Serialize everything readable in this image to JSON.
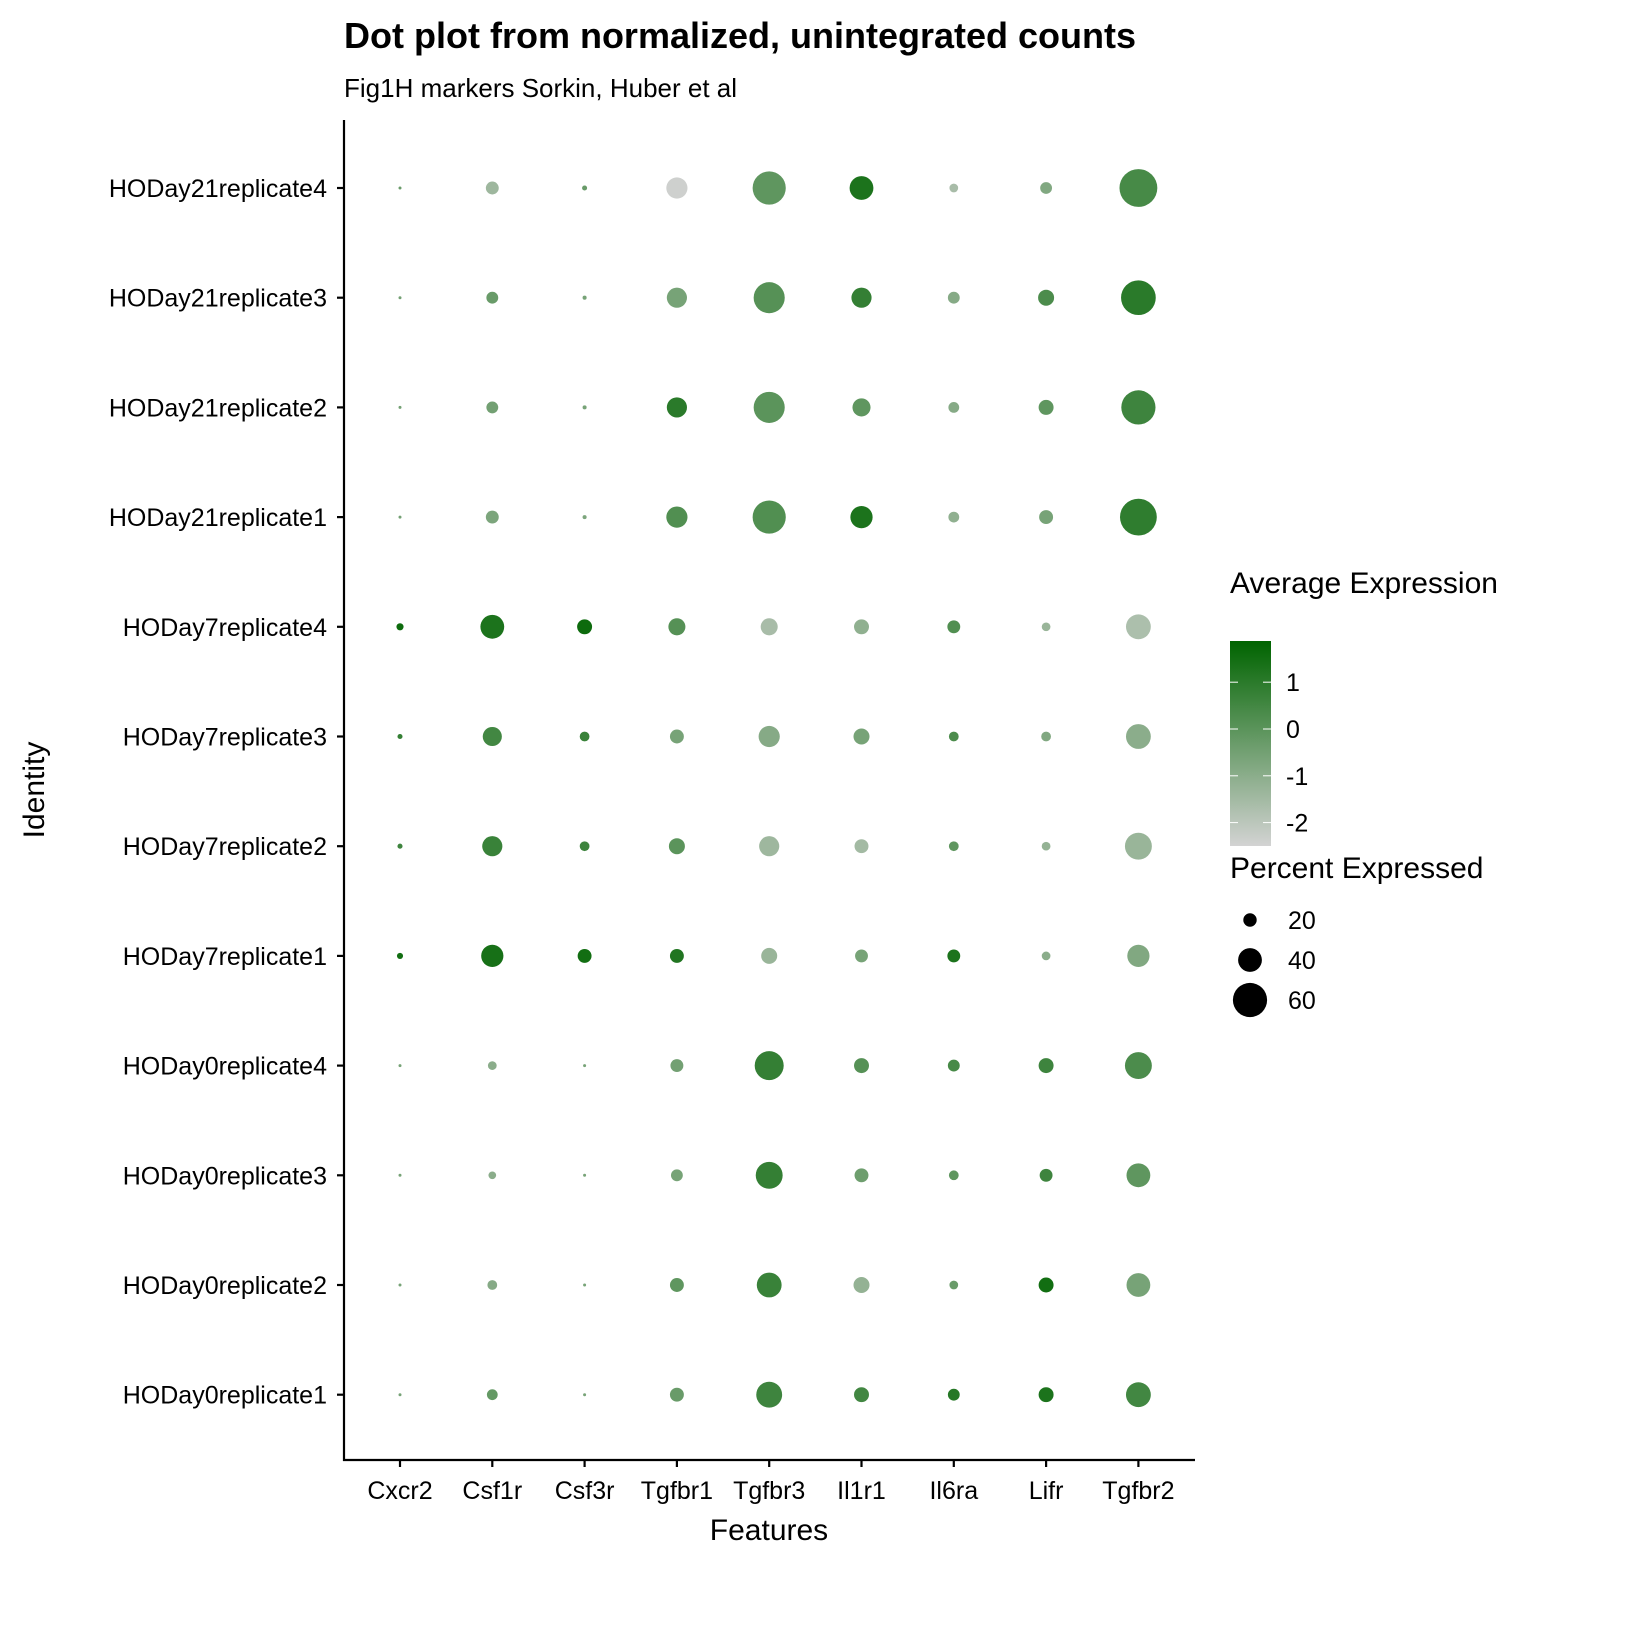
{
  "chart_data": {
    "type": "scatter",
    "subtype": "dot-plot",
    "title": "Dot plot from normalized, unintegrated counts",
    "subtitle": "Fig1H markers Sorkin, Huber et al",
    "xlabel": "Features",
    "ylabel": "Identity",
    "features": [
      "Cxcr2",
      "Csf1r",
      "Csf3r",
      "Tgfbr1",
      "Tgfbr3",
      "Il1r1",
      "Il6ra",
      "Lifr",
      "Tgfbr2"
    ],
    "identities": [
      "HODay21replicate4",
      "HODay21replicate3",
      "HODay21replicate2",
      "HODay21replicate1",
      "HODay7replicate4",
      "HODay7replicate3",
      "HODay7replicate2",
      "HODay7replicate1",
      "HODay0replicate4",
      "HODay0replicate3",
      "HODay0replicate2",
      "HODay0replicate1"
    ],
    "percent_expressed": [
      [
        0,
        19,
        4,
        35,
        58,
        40,
        11,
        17,
        67
      ],
      [
        0,
        17,
        2,
        33,
        54,
        33,
        17,
        25,
        61
      ],
      [
        0,
        17,
        2,
        33,
        54,
        29,
        15,
        23,
        60
      ],
      [
        0,
        19,
        2,
        35,
        58,
        37,
        15,
        21,
        65
      ],
      [
        8,
        40,
        23,
        27,
        27,
        23,
        19,
        11,
        42
      ],
      [
        4,
        31,
        13,
        21,
        35,
        25,
        13,
        13,
        42
      ],
      [
        4,
        33,
        13,
        25,
        33,
        21,
        13,
        11,
        46
      ],
      [
        6,
        37,
        21,
        21,
        25,
        19,
        19,
        11,
        37
      ],
      [
        0,
        11,
        0,
        19,
        50,
        23,
        17,
        23,
        46
      ],
      [
        0,
        9,
        0,
        17,
        46,
        21,
        13,
        19,
        40
      ],
      [
        0,
        13,
        0,
        21,
        42,
        25,
        11,
        23,
        40
      ],
      [
        0,
        15,
        0,
        21,
        44,
        23,
        17,
        23,
        42
      ]
    ],
    "average_expression": [
      [
        -0.3,
        -1.4,
        -0.3,
        -2.4,
        -0.1,
        1.3,
        -1.6,
        -0.8,
        0.4
      ],
      [
        -0.5,
        -0.3,
        -0.6,
        -0.6,
        0.1,
        0.8,
        -0.9,
        0.3,
        1.0
      ],
      [
        -0.5,
        -0.5,
        -0.6,
        1.0,
        0.0,
        -0.1,
        -0.9,
        -0.1,
        0.6
      ],
      [
        -0.5,
        -0.7,
        -0.7,
        0.2,
        0.2,
        1.3,
        -1.1,
        -0.6,
        0.9
      ],
      [
        1.6,
        1.3,
        1.6,
        0.1,
        -1.6,
        -1.1,
        0.2,
        -1.3,
        -1.7
      ],
      [
        0.8,
        0.5,
        0.7,
        -0.6,
        -0.9,
        -0.6,
        0.3,
        -0.8,
        -1.0
      ],
      [
        0.6,
        0.7,
        0.6,
        0.0,
        -1.4,
        -1.5,
        -0.1,
        -1.2,
        -1.3
      ],
      [
        1.5,
        1.4,
        1.5,
        1.2,
        -1.3,
        -0.6,
        1.3,
        -1.0,
        -0.8
      ],
      [
        -0.6,
        -1.0,
        -0.6,
        -0.5,
        0.8,
        0.1,
        0.4,
        0.6,
        0.3
      ],
      [
        -0.6,
        -1.0,
        -0.6,
        -0.6,
        0.8,
        -0.4,
        -0.1,
        0.6,
        -0.1
      ],
      [
        -0.6,
        -0.9,
        -0.6,
        -0.1,
        0.7,
        -1.2,
        -0.3,
        1.5,
        -0.6
      ],
      [
        -0.6,
        -0.2,
        -0.6,
        -0.3,
        0.6,
        0.5,
        1.1,
        1.3,
        0.5
      ]
    ],
    "color_legend": {
      "title": "Average Expression",
      "ticks": [
        "1",
        "0",
        "-1",
        "-2"
      ],
      "tick_values": [
        1,
        0,
        -1,
        -2
      ],
      "range": [
        -2.5,
        1.88
      ],
      "low_color": "#D3D3D3",
      "high_color": "#006400"
    },
    "size_legend": {
      "title": "Percent Expressed",
      "labels": [
        "20",
        "40",
        "60"
      ],
      "values": [
        20,
        40,
        60
      ]
    },
    "grid": false
  }
}
